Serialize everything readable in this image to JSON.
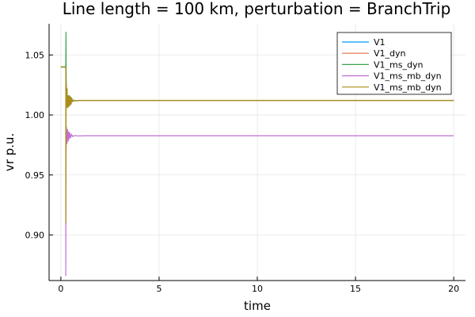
{
  "chart_data": {
    "type": "line",
    "title": "Line length = 100 km, perturbation = BranchTrip",
    "xlabel": "time",
    "ylabel": "vr p.u.",
    "xlim": [
      -0.6,
      20.6
    ],
    "ylim": [
      0.862,
      1.076
    ],
    "xticks": [
      0,
      5,
      10,
      15,
      20
    ],
    "xtick_labels": [
      "0",
      "5",
      "10",
      "15",
      "20"
    ],
    "yticks": [
      0.9,
      0.95,
      1.0,
      1.05
    ],
    "ytick_labels": [
      "0.90",
      "0.95",
      "1.00",
      "1.05"
    ],
    "grid": true,
    "legend_position": "top-right",
    "series": [
      {
        "name": "V1",
        "color": "#009AFA",
        "x": [
          0,
          0.25,
          0.25,
          0.27,
          0.29,
          0.31,
          0.34,
          0.37,
          0.4,
          0.43,
          0.46,
          0.49,
          0.52,
          0.55,
          0.58,
          0.62,
          0.66,
          0.72,
          0.8,
          0.9,
          1.2,
          2,
          5,
          10,
          15,
          20
        ],
        "y": [
          1.04,
          1.04,
          1.0,
          1.027,
          1.008,
          1.021,
          1.006,
          1.015,
          1.007,
          1.016,
          1.008,
          1.015,
          1.009,
          1.014,
          1.011,
          1.0125,
          1.0115,
          1.0122,
          1.0118,
          1.012,
          1.012,
          1.012,
          1.012,
          1.012,
          1.012,
          1.012
        ]
      },
      {
        "name": "V1_dyn",
        "color": "#E36F47",
        "x": [
          0,
          0.25,
          0.25,
          0.27,
          0.29,
          0.31,
          0.34,
          0.37,
          0.4,
          0.43,
          0.46,
          0.49,
          0.52,
          0.55,
          0.58,
          0.62,
          0.66,
          0.72,
          0.8,
          0.9,
          1.2,
          2,
          5,
          10,
          15,
          20
        ],
        "y": [
          1.04,
          1.04,
          0.985,
          1.028,
          1.007,
          1.022,
          1.006,
          1.016,
          1.007,
          1.016,
          1.008,
          1.015,
          1.009,
          1.014,
          1.011,
          1.0125,
          1.0115,
          1.0122,
          1.0118,
          1.012,
          1.012,
          1.012,
          1.012,
          1.012,
          1.012,
          1.012
        ]
      },
      {
        "name": "V1_ms_dyn",
        "color": "#3EA44E",
        "x": [
          0,
          0.25,
          0.26,
          0.27,
          0.29,
          0.31,
          0.34,
          0.37,
          0.4,
          0.43,
          0.46,
          0.49,
          0.52,
          0.55,
          0.58,
          0.62,
          0.66,
          0.72,
          0.8,
          0.9,
          1.2,
          2,
          5,
          10,
          15,
          20
        ],
        "y": [
          1.04,
          1.04,
          1.069,
          1.03,
          1.008,
          1.022,
          1.006,
          1.016,
          1.007,
          1.016,
          1.008,
          1.015,
          1.009,
          1.014,
          1.011,
          1.0125,
          1.0115,
          1.0122,
          1.0118,
          1.012,
          1.012,
          1.012,
          1.012,
          1.012,
          1.012,
          1.012
        ]
      },
      {
        "name": "V1_ms_mb_dyn",
        "color": "#C271D2",
        "x": [
          0.25,
          0.25,
          0.26,
          0.28,
          0.31,
          0.34,
          0.37,
          0.4,
          0.43,
          0.46,
          0.5,
          0.55,
          0.6,
          0.7,
          0.85,
          1.2,
          2,
          5,
          10,
          15,
          20
        ],
        "y": [
          0.98,
          0.866,
          0.962,
          0.99,
          0.976,
          0.988,
          0.978,
          0.986,
          0.98,
          0.985,
          0.981,
          0.984,
          0.982,
          0.9828,
          0.9825,
          0.9826,
          0.9826,
          0.9826,
          0.9826,
          0.9826,
          0.9826
        ]
      },
      {
        "name": "V1_ms_mb_dyn",
        "color": "#AC8D18",
        "x": [
          0,
          0.25,
          0.25,
          0.27,
          0.29,
          0.31,
          0.34,
          0.37,
          0.4,
          0.43,
          0.46,
          0.49,
          0.52,
          0.55,
          0.58,
          0.62,
          0.66,
          0.72,
          0.8,
          0.9,
          1.2,
          2,
          5,
          10,
          15,
          20
        ],
        "y": [
          1.04,
          1.04,
          0.91,
          1.026,
          1.007,
          1.021,
          1.006,
          1.015,
          1.007,
          1.016,
          1.008,
          1.015,
          1.009,
          1.014,
          1.011,
          1.0125,
          1.0115,
          1.0122,
          1.0118,
          1.012,
          1.012,
          1.012,
          1.012,
          1.012,
          1.012,
          1.012
        ]
      }
    ]
  }
}
